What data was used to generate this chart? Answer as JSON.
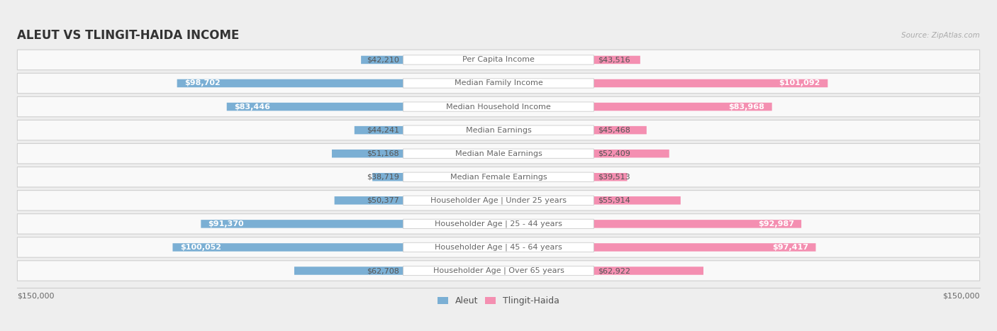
{
  "title": "ALEUT VS TLINGIT-HAIDA INCOME",
  "source": "Source: ZipAtlas.com",
  "categories": [
    "Per Capita Income",
    "Median Family Income",
    "Median Household Income",
    "Median Earnings",
    "Median Male Earnings",
    "Median Female Earnings",
    "Householder Age | Under 25 years",
    "Householder Age | 25 - 44 years",
    "Householder Age | 45 - 64 years",
    "Householder Age | Over 65 years"
  ],
  "aleut_values": [
    42210,
    98702,
    83446,
    44241,
    51168,
    38719,
    50377,
    91370,
    100052,
    62708
  ],
  "tlingit_values": [
    43516,
    101092,
    83968,
    45468,
    52409,
    39513,
    55914,
    92987,
    97417,
    62922
  ],
  "aleut_labels": [
    "$42,210",
    "$98,702",
    "$83,446",
    "$44,241",
    "$51,168",
    "$38,719",
    "$50,377",
    "$91,370",
    "$100,052",
    "$62,708"
  ],
  "tlingit_labels": [
    "$43,516",
    "$101,092",
    "$83,968",
    "$45,468",
    "$52,409",
    "$39,513",
    "$55,914",
    "$92,987",
    "$97,417",
    "$62,922"
  ],
  "aleut_color": "#7bafd4",
  "tlingit_color": "#f48fb1",
  "max_value": 150000,
  "background_color": "#eeeeee",
  "row_bg_color": "#f8f8f8",
  "title_fontsize": 12,
  "bar_label_fontsize": 8,
  "cat_label_fontsize": 8,
  "legend_fontsize": 9,
  "inside_label_threshold": 0.5
}
